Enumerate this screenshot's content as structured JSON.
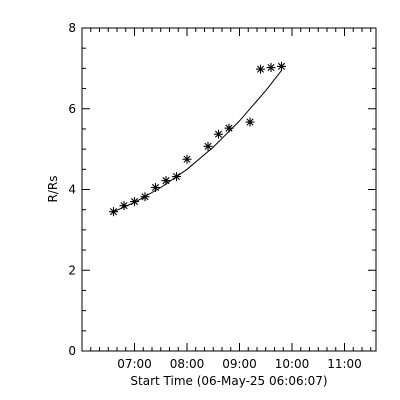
{
  "chart_data": {
    "type": "scatter",
    "title": "",
    "xlabel": "Start Time (06-May-25 06:06:07)",
    "ylabel": "R/Rs",
    "xlim_hours": [
      6.0,
      11.6
    ],
    "ylim": [
      0,
      8
    ],
    "x_tick_labels": [
      "07:00",
      "08:00",
      "09:00",
      "10:00",
      "11:00"
    ],
    "x_tick_values_hours": [
      7,
      8,
      9,
      10,
      11
    ],
    "y_tick_labels": [
      "0",
      "2",
      "4",
      "6",
      "8"
    ],
    "y_tick_values": [
      0,
      2,
      4,
      6,
      8
    ],
    "grid": false,
    "legend": "none",
    "marker": "asterisk",
    "series": [
      {
        "points": [
          {
            "time": "06:36",
            "y": 3.45
          },
          {
            "time": "06:48",
            "y": 3.6
          },
          {
            "time": "07:00",
            "y": 3.7
          },
          {
            "time": "07:12",
            "y": 3.82
          },
          {
            "time": "07:24",
            "y": 4.05
          },
          {
            "time": "07:36",
            "y": 4.22
          },
          {
            "time": "07:48",
            "y": 4.32
          },
          {
            "time": "08:00",
            "y": 4.75
          },
          {
            "time": "08:24",
            "y": 5.07
          },
          {
            "time": "08:36",
            "y": 5.37
          },
          {
            "time": "08:48",
            "y": 5.52
          },
          {
            "time": "09:12",
            "y": 5.67
          },
          {
            "time": "09:24",
            "y": 6.98
          },
          {
            "time": "09:36",
            "y": 7.02
          },
          {
            "time": "09:48",
            "y": 7.05
          }
        ]
      }
    ],
    "fit_curve": [
      {
        "time": "06:36",
        "y": 3.45
      },
      {
        "time": "07:00",
        "y": 3.68
      },
      {
        "time": "07:30",
        "y": 4.05
      },
      {
        "time": "08:00",
        "y": 4.5
      },
      {
        "time": "08:30",
        "y": 5.05
      },
      {
        "time": "09:00",
        "y": 5.7
      },
      {
        "time": "09:30",
        "y": 6.45
      },
      {
        "time": "09:48",
        "y": 6.95
      }
    ]
  }
}
